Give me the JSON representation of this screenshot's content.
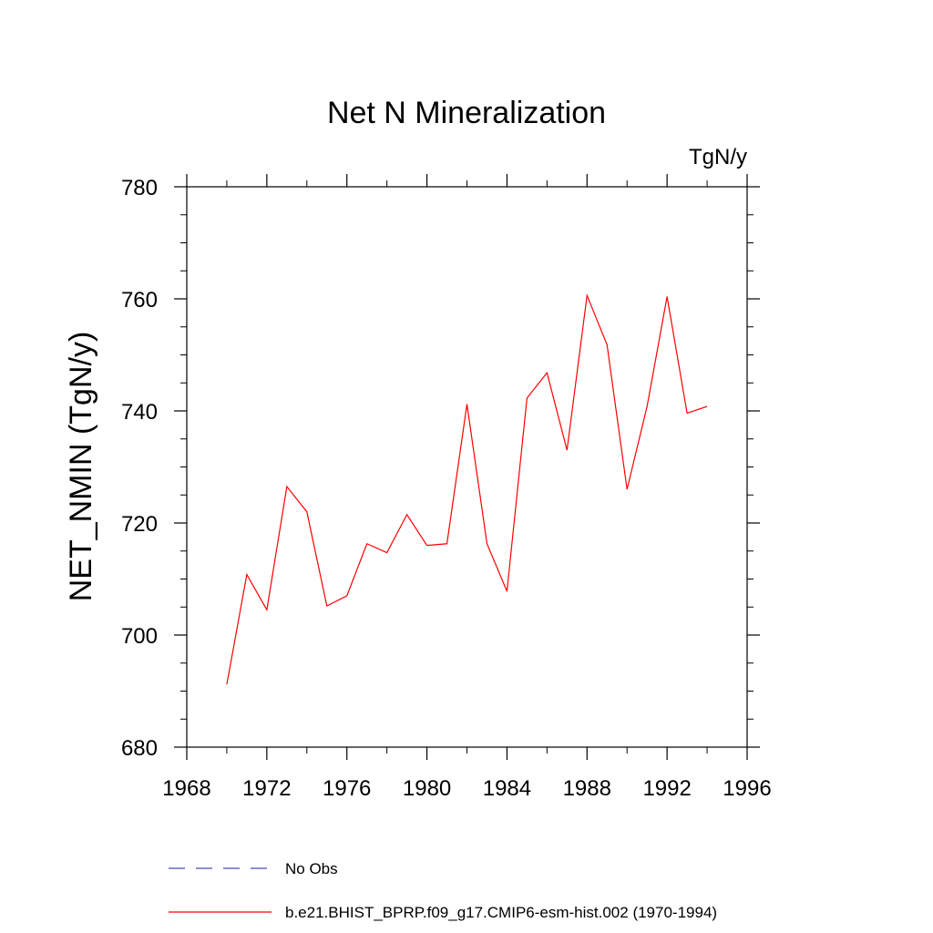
{
  "chart_data": {
    "type": "line",
    "title": "Net N Mineralization",
    "units": "TgN/y",
    "ylabel": "NET_NMIN  (TgN/y)",
    "xlabel": "",
    "xlim": [
      1968,
      1996
    ],
    "ylim": [
      680,
      780
    ],
    "x_ticks": [
      1968,
      1972,
      1976,
      1980,
      1984,
      1988,
      1992,
      1996
    ],
    "x_minor_ticks": [
      1970,
      1974,
      1978,
      1982,
      1986,
      1990,
      1994
    ],
    "y_ticks": [
      680,
      700,
      720,
      740,
      760,
      780
    ],
    "y_minor_step": 5,
    "grid": false,
    "legend_position": "bottom",
    "series": [
      {
        "name": "No Obs",
        "color": "#4b4bb4",
        "style": "dashed",
        "x": [],
        "y": []
      },
      {
        "name": "b.e21.BHIST_BPRP.f09_g17.CMIP6-esm-hist.002 (1970-1994)",
        "color": "#ff0000",
        "style": "solid",
        "x": [
          1970,
          1971,
          1972,
          1973,
          1974,
          1975,
          1976,
          1977,
          1978,
          1979,
          1980,
          1981,
          1982,
          1983,
          1984,
          1985,
          1986,
          1987,
          1988,
          1989,
          1990,
          1991,
          1992,
          1993,
          1994
        ],
        "y": [
          691.2,
          710.8,
          704.5,
          726.5,
          722.0,
          705.2,
          707.0,
          716.3,
          714.7,
          721.5,
          716.0,
          716.3,
          741.2,
          716.3,
          707.8,
          742.3,
          746.8,
          733.0,
          760.6,
          751.8,
          726.0,
          740.8,
          760.4,
          739.6,
          740.8
        ]
      }
    ]
  }
}
